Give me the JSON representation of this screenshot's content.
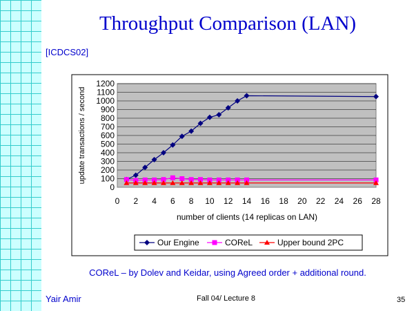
{
  "slide": {
    "title": "Throughput Comparison (LAN)",
    "citation": "[ICDCS02]",
    "footnote": "COReL – by Dolev and Keidar, using Agreed order + additional round.",
    "author": "Yair Amir",
    "lecture": "Fall 04/ Lecture 8",
    "page_number": "35",
    "accent_color": "#0000cc",
    "grid_color": "#ccffff"
  },
  "chart_data": {
    "type": "line",
    "xlabel": "number of clients (14 replicas on LAN)",
    "ylabel": "update transactions / second",
    "x_ticks": [
      "0",
      "2",
      "4",
      "6",
      "8",
      "10",
      "12",
      "14",
      "16",
      "18",
      "20",
      "22",
      "24",
      "26",
      "28"
    ],
    "y_ticks": [
      "0",
      "100",
      "200",
      "300",
      "400",
      "500",
      "600",
      "700",
      "800",
      "900",
      "1000",
      "1100",
      "1200"
    ],
    "xlim": [
      0,
      28
    ],
    "ylim": [
      0,
      1200
    ],
    "grid": "horizontal",
    "legend_position": "bottom",
    "series": [
      {
        "name": "Our Engine",
        "color": "#000080",
        "marker": "diamond",
        "x": [
          1,
          2,
          3,
          4,
          5,
          6,
          7,
          8,
          9,
          10,
          11,
          12,
          13,
          14,
          28
        ],
        "y": [
          90,
          140,
          230,
          320,
          400,
          490,
          590,
          650,
          740,
          810,
          840,
          920,
          1000,
          1060,
          1050
        ]
      },
      {
        "name": "COReL",
        "color": "#ff00ff",
        "marker": "square",
        "x": [
          1,
          2,
          3,
          4,
          5,
          6,
          7,
          8,
          9,
          10,
          11,
          12,
          13,
          14,
          28
        ],
        "y": [
          90,
          80,
          85,
          85,
          90,
          110,
          100,
          90,
          90,
          85,
          85,
          85,
          85,
          85,
          85
        ]
      },
      {
        "name": "Upper bound 2PC",
        "color": "#ff0000",
        "marker": "triangle",
        "x": [
          1,
          2,
          3,
          4,
          5,
          6,
          7,
          8,
          9,
          10,
          11,
          12,
          13,
          14,
          28
        ],
        "y": [
          50,
          50,
          50,
          50,
          50,
          50,
          50,
          50,
          50,
          50,
          50,
          50,
          50,
          50,
          50
        ]
      }
    ]
  }
}
